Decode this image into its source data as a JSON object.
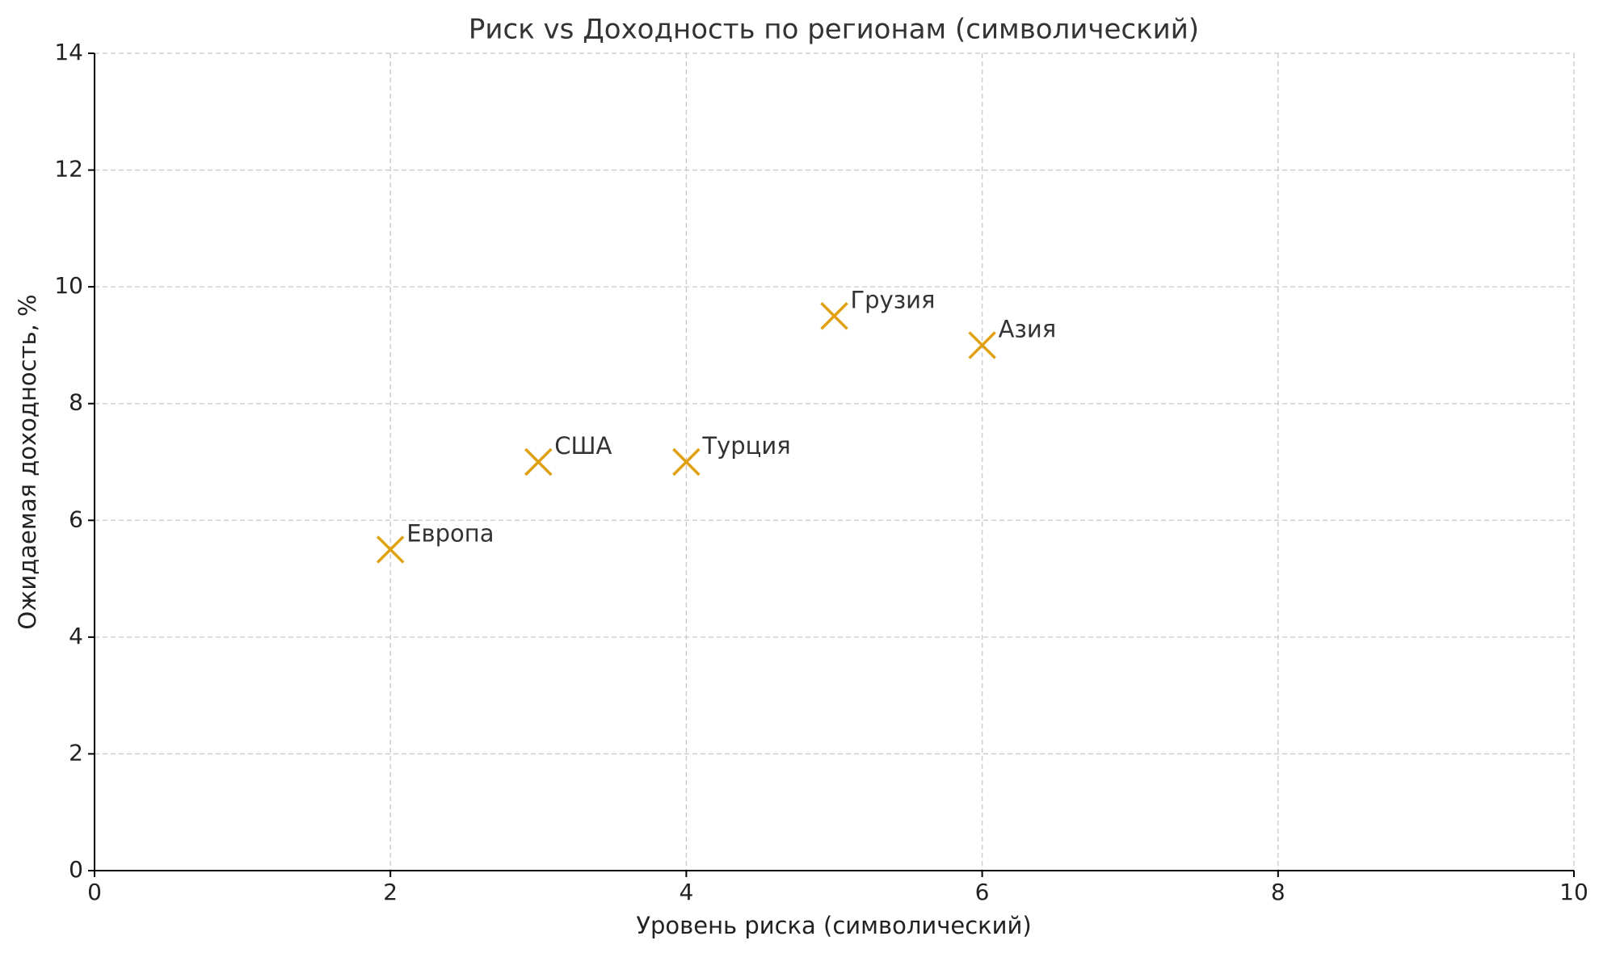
{
  "chart_data": {
    "type": "scatter",
    "title": "Риск vs Доходность по регионам (символический)",
    "x_label": "Уровень риска (символический)",
    "y_label": "Ожидаемая доходность, %",
    "x": [
      2,
      3,
      4,
      5,
      6
    ],
    "values": [
      5.5,
      7,
      7,
      9.5,
      9
    ],
    "labels": [
      "Европа",
      "США",
      "Турция",
      "Грузия",
      "Азия"
    ],
    "color": "#e0a00f",
    "marker": "x",
    "xlim": [
      0,
      10
    ],
    "xticks": [
      0,
      2,
      4,
      6,
      8,
      10
    ],
    "ylim": [
      0,
      14
    ],
    "yticks": [
      0,
      2,
      4,
      6,
      8,
      10,
      12,
      14
    ],
    "grid": true
  }
}
